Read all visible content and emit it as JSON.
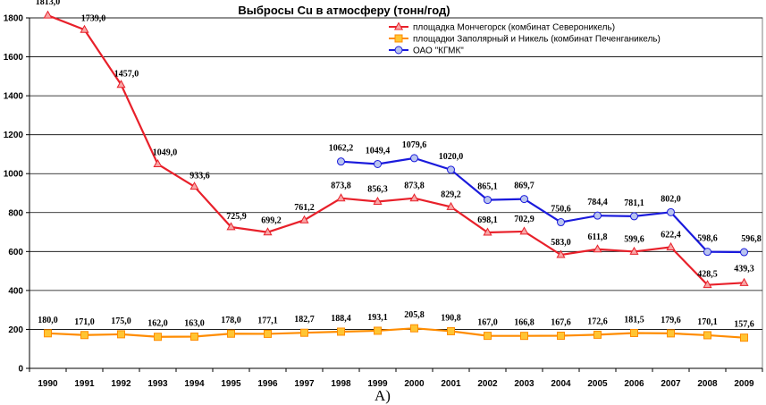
{
  "caption": "А)",
  "chart_data": {
    "type": "line",
    "title": "Выбросы Cu в атмосферу (тонн/год)",
    "xlabel": "",
    "ylabel": "",
    "ylim": [
      0,
      1800
    ],
    "yticks": [
      0,
      200,
      400,
      600,
      800,
      1000,
      1200,
      1400,
      1600,
      1800
    ],
    "grid": true,
    "legend_position": "top-right",
    "categories": [
      "1990",
      "1991",
      "1992",
      "1993",
      "1994",
      "1995",
      "1996",
      "1997",
      "1998",
      "1999",
      "2000",
      "2001",
      "2002",
      "2003",
      "2004",
      "2005",
      "2006",
      "2007",
      "2008",
      "2009"
    ],
    "series": [
      {
        "name": "площадка Мончегорск (комбинат Североникель)",
        "color": "#e8202a",
        "marker": "triangle",
        "values": [
          1813.0,
          1739.0,
          1457.0,
          1049.0,
          933.6,
          725.9,
          699.2,
          761.2,
          873.8,
          856.3,
          873.8,
          829.2,
          698.1,
          702.9,
          583.0,
          611.8,
          599.6,
          622.4,
          428.5,
          439.3
        ],
        "labels": [
          "1813,0",
          "1739,0",
          "1457,0",
          "1049,0",
          "933,6",
          "725,9",
          "699,2",
          "761,2",
          "873,8",
          "856,3",
          "873,8",
          "829,2",
          "698,1",
          "702,9",
          "583,0",
          "611,8",
          "599,6",
          "622,4",
          "428,5",
          "439,3"
        ]
      },
      {
        "name": "площадки Заполярный и Никель (комбинат Печенганикель)",
        "color": "#ff8c00",
        "marker": "square",
        "values": [
          180.0,
          171.0,
          175.0,
          162.0,
          163.0,
          178.0,
          177.1,
          182.7,
          188.4,
          193.1,
          205.8,
          190.8,
          167.0,
          166.8,
          167.6,
          172.6,
          181.5,
          179.6,
          170.1,
          157.6
        ],
        "labels": [
          "180,0",
          "171,0",
          "175,0",
          "162,0",
          "163,0",
          "178,0",
          "177,1",
          "182,7",
          "188,4",
          "193,1",
          "205,8",
          "190,8",
          "167,0",
          "166,8",
          "167,6",
          "172,6",
          "181,5",
          "179,6",
          "170,1",
          "157,6"
        ]
      },
      {
        "name": "ОАО \"КГМК\"",
        "color": "#1a1adc",
        "marker": "circle",
        "values": [
          null,
          null,
          null,
          null,
          null,
          null,
          null,
          null,
          1062.2,
          1049.4,
          1079.6,
          1020.0,
          865.1,
          869.7,
          750.6,
          784.4,
          781.1,
          802.0,
          598.6,
          596.8
        ],
        "labels": [
          null,
          null,
          null,
          null,
          null,
          null,
          null,
          null,
          "1062,2",
          "1049,4",
          "1079,6",
          "1020,0",
          "865,1",
          "869,7",
          "750,6",
          "784,4",
          "781,1",
          "802,0",
          "598,6",
          "596,8"
        ]
      }
    ]
  }
}
